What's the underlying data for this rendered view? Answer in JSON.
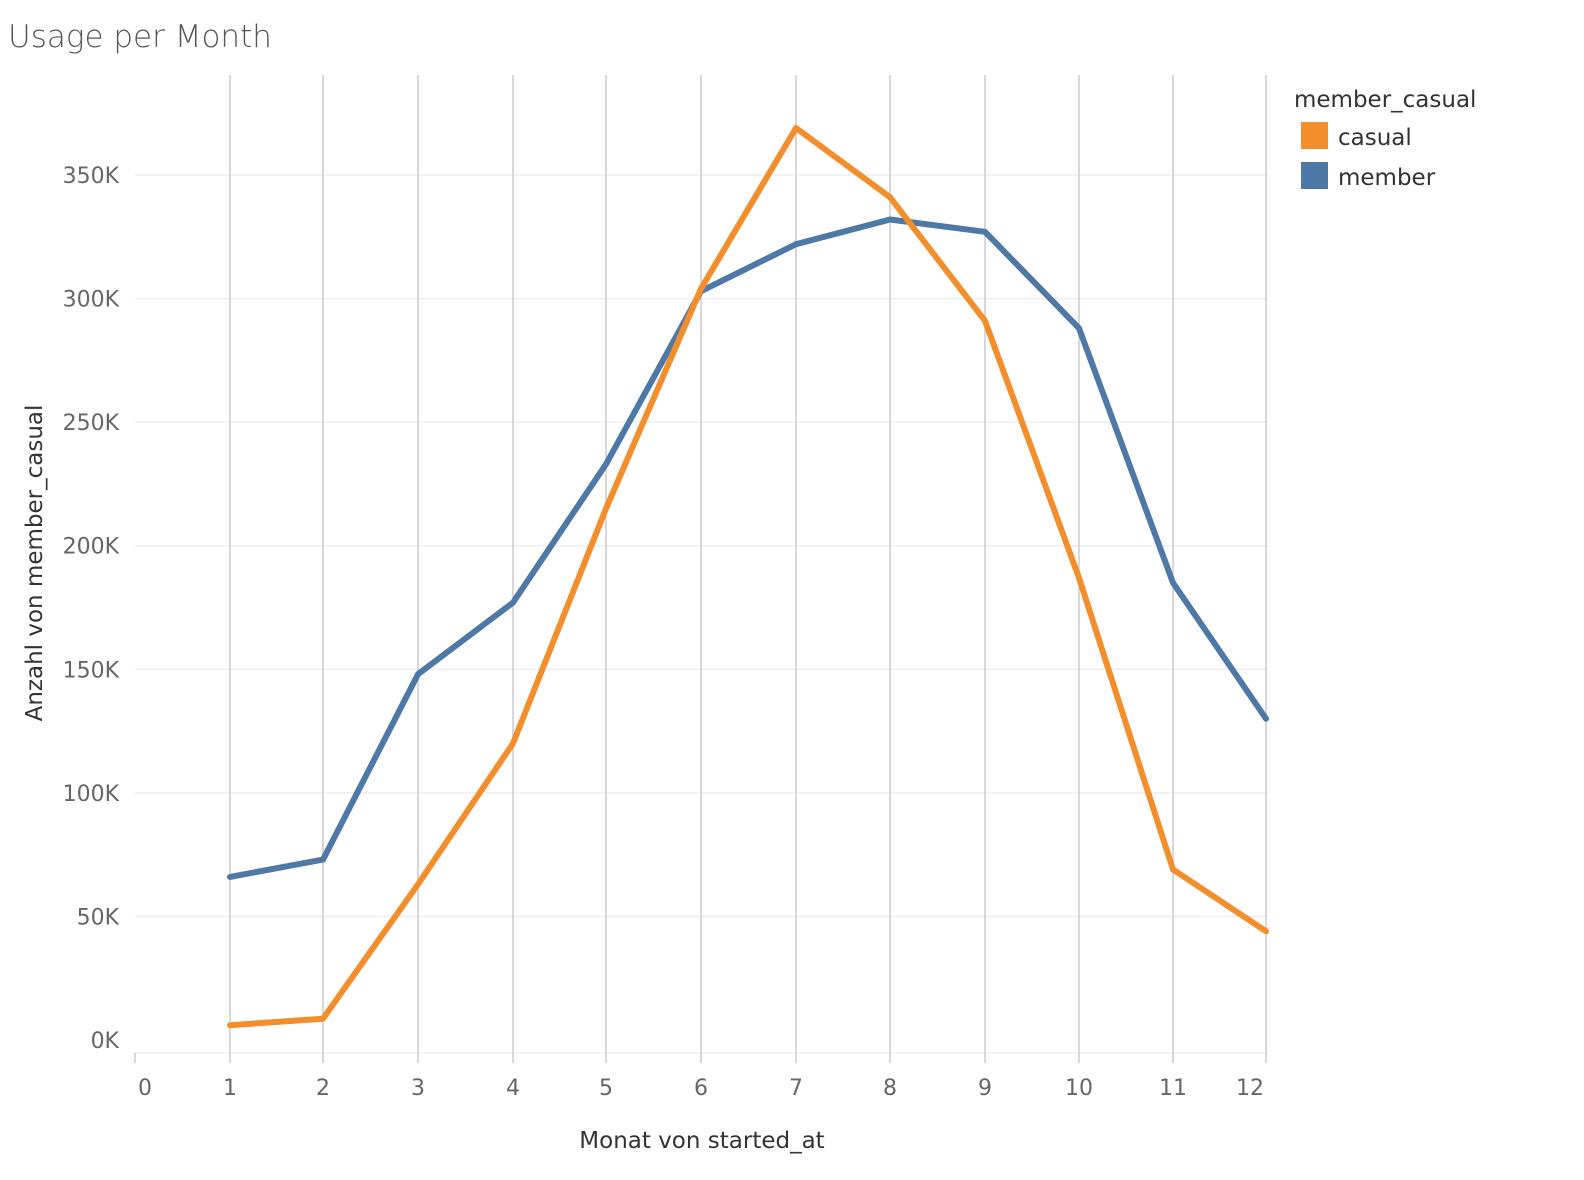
{
  "chart_data": {
    "type": "line",
    "title": "Usage per Month",
    "xlabel": "Monat von started_at",
    "ylabel": "Anzahl von member_casual",
    "x_ticks": [
      "0",
      "1",
      "2",
      "3",
      "4",
      "5",
      "6",
      "7",
      "8",
      "9",
      "10",
      "11",
      "12"
    ],
    "y_ticks": [
      "0K",
      "50K",
      "100K",
      "150K",
      "200K",
      "250K",
      "300K",
      "350K"
    ],
    "xlim": [
      0,
      12
    ],
    "ylim": [
      0,
      380000
    ],
    "grid": {
      "x": true,
      "y": true
    },
    "legend": {
      "title": "member_casual",
      "position": "right"
    },
    "x": [
      1,
      2,
      3,
      4,
      5,
      6,
      7,
      8,
      9,
      10,
      11,
      12
    ],
    "series": [
      {
        "name": "casual",
        "color": "#F28E2B",
        "values": [
          6000,
          8600,
          63000,
          120000,
          215000,
          304000,
          369000,
          341000,
          291000,
          187000,
          69000,
          44000
        ]
      },
      {
        "name": "member",
        "color": "#4E79A7",
        "values": [
          66000,
          73000,
          148000,
          177000,
          233000,
          303000,
          322000,
          332000,
          327000,
          288000,
          185000,
          130000
        ]
      }
    ]
  }
}
